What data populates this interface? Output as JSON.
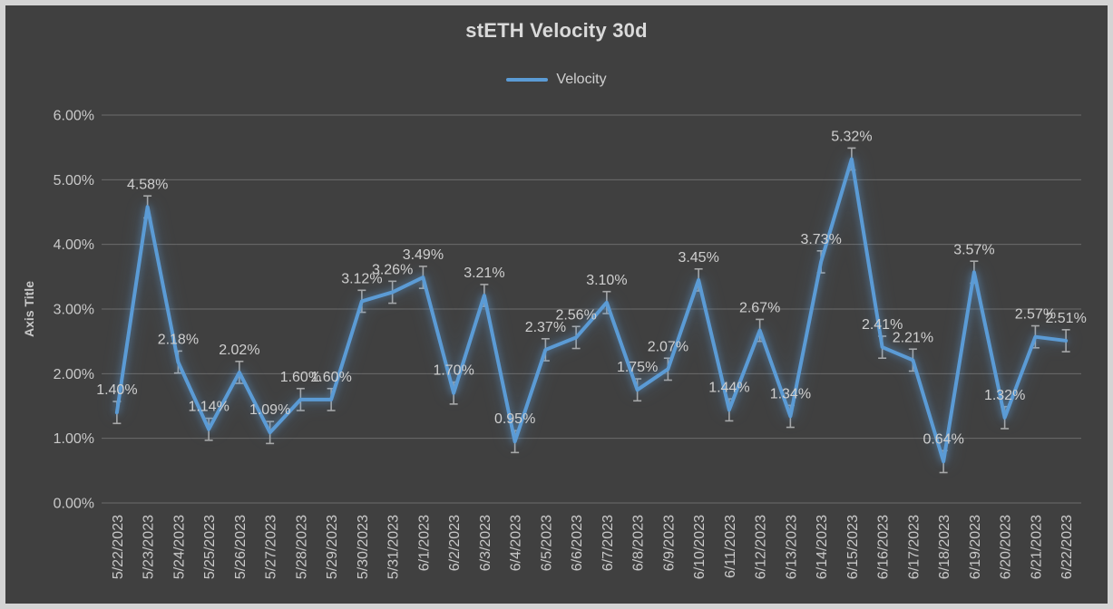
{
  "title": "stETH Velocity 30d",
  "legend": {
    "label": "Velocity",
    "line_color": "#5b9bd5"
  },
  "colors": {
    "background": "#404040",
    "frame_border": "#d4d4d4",
    "series": "#5b9bd5",
    "grid": "#6b6b6b",
    "error_bar": "#a8a8a8",
    "text": "#c9c9c9",
    "data_label": "#cfcfcf"
  },
  "chart_data": {
    "type": "line",
    "title": "stETH Velocity 30d",
    "xlabel": "",
    "ylabel": "Axis Title",
    "ylim": [
      0,
      6
    ],
    "grid": true,
    "legend_position": "top",
    "yticks": [
      0,
      1,
      2,
      3,
      4,
      5,
      6
    ],
    "ytick_labels": [
      "0.00%",
      "1.00%",
      "2.00%",
      "3.00%",
      "4.00%",
      "5.00%",
      "6.00%"
    ],
    "error_bar_half_value": 0.17,
    "categories": [
      "5/22/2023",
      "5/23/2023",
      "5/24/2023",
      "5/25/2023",
      "5/26/2023",
      "5/27/2023",
      "5/28/2023",
      "5/29/2023",
      "5/30/2023",
      "5/31/2023",
      "6/1/2023",
      "6/2/2023",
      "6/3/2023",
      "6/4/2023",
      "6/5/2023",
      "6/6/2023",
      "6/7/2023",
      "6/8/2023",
      "6/9/2023",
      "6/10/2023",
      "6/11/2023",
      "6/12/2023",
      "6/13/2023",
      "6/14/2023",
      "6/15/2023",
      "6/16/2023",
      "6/17/2023",
      "6/18/2023",
      "6/19/2023",
      "6/20/2023",
      "6/21/2023",
      "6/22/2023"
    ],
    "series": [
      {
        "name": "Velocity",
        "color": "#5b9bd5",
        "values": [
          1.4,
          4.58,
          2.18,
          1.14,
          2.02,
          1.09,
          1.6,
          1.6,
          3.12,
          3.26,
          3.49,
          1.7,
          3.21,
          0.95,
          2.37,
          2.56,
          3.1,
          1.75,
          2.07,
          3.45,
          1.44,
          2.67,
          1.34,
          3.73,
          5.32,
          2.41,
          2.21,
          0.64,
          3.57,
          1.32,
          2.57,
          2.51
        ],
        "data_labels": [
          "1.40%",
          "4.58%",
          "2.18%",
          "1.14%",
          "2.02%",
          "1.09%",
          "1.60%",
          "1.60%",
          "3.12%",
          "3.26%",
          "3.49%",
          "1.70%",
          "3.21%",
          "0.95%",
          "2.37%",
          "2.56%",
          "3.10%",
          "1.75%",
          "2.07%",
          "3.45%",
          "1.44%",
          "2.67%",
          "1.34%",
          "3.73%",
          "5.32%",
          "2.41%",
          "2.21%",
          "0.64%",
          "3.57%",
          "1.32%",
          "2.57%",
          "2.51%"
        ]
      }
    ]
  }
}
